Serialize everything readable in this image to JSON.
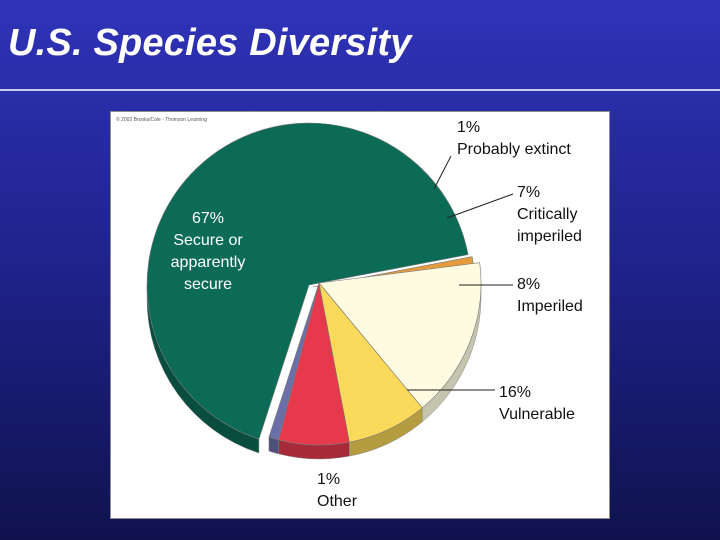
{
  "slide": {
    "title": "U.S. Species Diversity",
    "credit": "© 2002 Brooks/Cole - Thomson Learning"
  },
  "colors": {
    "background": "#20248f",
    "title_text": "#ffffff",
    "secure": "#0c6b57",
    "other": "#e59a3c",
    "vulnerable": "#fdfbe0",
    "imperiled": "#fbd95a",
    "critically_imperiled": "#e63a4c",
    "probably_extinct": "#6b6fa8"
  },
  "chart_data": {
    "type": "pie",
    "style": "3d-exploded",
    "slices": [
      {
        "key": "secure",
        "percent": 67,
        "pct_label": "67%",
        "label_lines": [
          "Secure or",
          "apparently",
          "secure"
        ],
        "color": "#0c6b57"
      },
      {
        "key": "other",
        "percent": 1,
        "pct_label": "1%",
        "label_lines": [
          "Other"
        ],
        "color": "#e59a3c"
      },
      {
        "key": "vulnerable",
        "percent": 16,
        "pct_label": "16%",
        "label_lines": [
          "Vulnerable"
        ],
        "color": "#fdfbe0"
      },
      {
        "key": "imperiled",
        "percent": 8,
        "pct_label": "8%",
        "label_lines": [
          "Imperiled"
        ],
        "color": "#fbd95a"
      },
      {
        "key": "critically_imperiled",
        "percent": 7,
        "pct_label": "7%",
        "label_lines": [
          "Critically",
          "imperiled"
        ],
        "color": "#e63a4c"
      },
      {
        "key": "probably_extinct",
        "percent": 1,
        "pct_label": "1%",
        "label_lines": [
          "Probably extinct"
        ],
        "color": "#6b6fa8"
      }
    ]
  }
}
